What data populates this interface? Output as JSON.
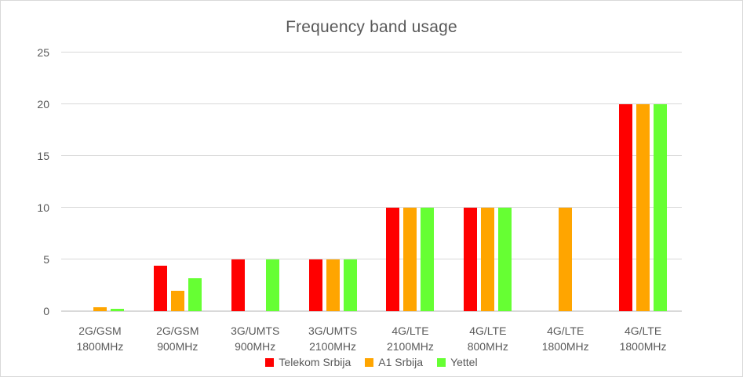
{
  "chart_data": {
    "type": "bar",
    "title": "Frequency band usage",
    "xlabel": "",
    "ylabel": "",
    "ylim": [
      0,
      25
    ],
    "y_ticks": [
      0,
      5,
      10,
      15,
      20,
      25
    ],
    "grid": true,
    "legend_position": "bottom",
    "categories": [
      "2G/GSM\n1800MHz",
      "2G/GSM\n900MHz",
      "3G/UMTS\n900MHz",
      "3G/UMTS\n2100MHz",
      "4G/LTE\n2100MHz",
      "4G/LTE\n800MHz",
      "4G/LTE\n1800MHz",
      "4G/LTE\n1800MHz"
    ],
    "series": [
      {
        "name": "Telekom Srbija",
        "color": "#FF0000",
        "values": [
          0,
          4.4,
          5,
          5,
          10,
          10,
          0,
          20
        ]
      },
      {
        "name": "A1 Srbija",
        "color": "#FFA500",
        "values": [
          0.4,
          2,
          0,
          5,
          10,
          10,
          10,
          20
        ]
      },
      {
        "name": "Yettel",
        "color": "#66FF33",
        "values": [
          0.2,
          3.2,
          5,
          5,
          10,
          10,
          0,
          20
        ]
      }
    ]
  },
  "colors": {
    "title_text": "#595959",
    "axis_text": "#595959",
    "gridline": "#D9D9D9",
    "chart_border": "#D9D9D9",
    "background": "#FFFFFF"
  }
}
